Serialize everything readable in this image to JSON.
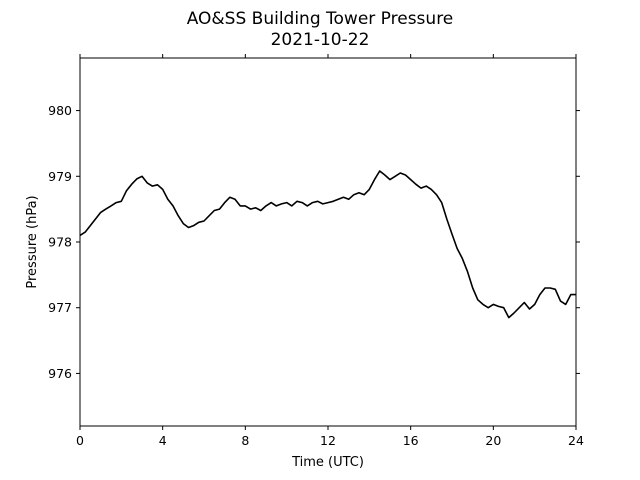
{
  "chart_data": {
    "type": "line",
    "title": "AO&SS Building Tower Pressure",
    "subtitle": "2021-10-22",
    "xlabel": "Time (UTC)",
    "ylabel": "Pressure (hPa)",
    "xlim": [
      0,
      24
    ],
    "ylim": [
      975.2,
      980.8
    ],
    "xticks": [
      0,
      4,
      8,
      12,
      16,
      20,
      24
    ],
    "yticks": [
      976,
      977,
      978,
      979,
      980
    ],
    "grid": false,
    "line_color": "#000000",
    "series": [
      {
        "x": [
          0.0,
          0.25,
          0.5,
          0.75,
          1.0,
          1.25,
          1.5,
          1.75,
          2.0,
          2.25,
          2.5,
          2.75,
          3.0,
          3.25,
          3.5,
          3.75,
          4.0,
          4.25,
          4.5,
          4.75,
          5.0,
          5.25,
          5.5,
          5.75,
          6.0,
          6.25,
          6.5,
          6.75,
          7.0,
          7.25,
          7.5,
          7.75,
          8.0,
          8.25,
          8.5,
          8.75,
          9.0,
          9.25,
          9.5,
          9.75,
          10.0,
          10.25,
          10.5,
          10.75,
          11.0,
          11.25,
          11.5,
          11.75,
          12.0,
          12.25,
          12.5,
          12.75,
          13.0,
          13.25,
          13.5,
          13.75,
          14.0,
          14.25,
          14.5,
          14.75,
          15.0,
          15.25,
          15.5,
          15.75,
          16.0,
          16.25,
          16.5,
          16.75,
          17.0,
          17.25,
          17.5,
          17.75,
          18.0,
          18.25,
          18.5,
          18.75,
          19.0,
          19.25,
          19.5,
          19.75,
          20.0,
          20.25,
          20.5,
          20.75,
          21.0,
          21.25,
          21.5,
          21.75,
          22.0,
          22.25,
          22.5,
          22.75,
          23.0,
          23.25,
          23.5,
          23.75,
          24.0
        ],
        "values": [
          978.1,
          978.15,
          978.25,
          978.35,
          978.45,
          978.5,
          978.55,
          978.6,
          978.62,
          978.78,
          978.88,
          978.96,
          979.0,
          978.9,
          978.85,
          978.87,
          978.8,
          978.65,
          978.55,
          978.4,
          978.28,
          978.22,
          978.25,
          978.3,
          978.32,
          978.4,
          978.48,
          978.5,
          978.6,
          978.68,
          978.65,
          978.55,
          978.55,
          978.5,
          978.52,
          978.48,
          978.55,
          978.6,
          978.55,
          978.58,
          978.6,
          978.55,
          978.62,
          978.6,
          978.55,
          978.6,
          978.62,
          978.58,
          978.6,
          978.62,
          978.65,
          978.68,
          978.65,
          978.72,
          978.75,
          978.72,
          978.8,
          978.95,
          979.08,
          979.02,
          978.95,
          979.0,
          979.05,
          979.02,
          978.95,
          978.88,
          978.82,
          978.85,
          978.8,
          978.72,
          978.6,
          978.35,
          978.12,
          977.9,
          977.75,
          977.55,
          977.3,
          977.12,
          977.05,
          977.0,
          977.05,
          977.02,
          977.0,
          976.85,
          976.92,
          977.0,
          977.08,
          976.98,
          977.05,
          977.2,
          977.3,
          977.3,
          977.28,
          977.1,
          977.05,
          977.2,
          977.2
        ]
      }
    ]
  }
}
